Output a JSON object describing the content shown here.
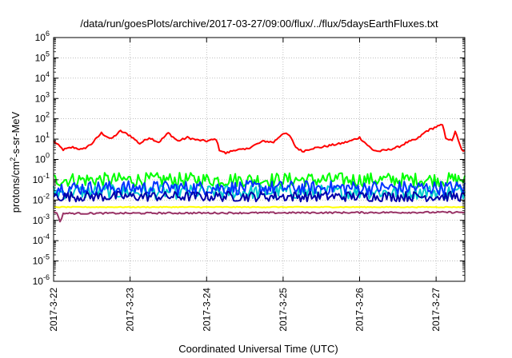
{
  "chart_data": {
    "type": "line",
    "title": "/data/run/goesPlots/archive/2017-03-27/09:00/flux/../flux/5daysEarthFluxes.txt",
    "xlabel": "Coordinated Universal Time (UTC)",
    "ylabel": "protons/cm2-s-sr-MeV",
    "ylabel_parts": {
      "pre": "protons/cm",
      "sup": "2",
      "post": "-s-sr-MeV"
    },
    "y_scale": "log",
    "ylim": [
      1e-06,
      1000000.0
    ],
    "xlim": [
      "2017-03-22 00:00",
      "2017-03-27 09:00"
    ],
    "grid": true,
    "x_tick_labels": [
      "2017-3-22",
      "2017-3-23",
      "2017-3-24",
      "2017-3-25",
      "2017-3-26",
      "2017-3-27"
    ],
    "y_tick_labels": [
      {
        "base": "10",
        "exp": "-6"
      },
      {
        "base": "10",
        "exp": "-5"
      },
      {
        "base": "10",
        "exp": "-4"
      },
      {
        "base": "10",
        "exp": "-3"
      },
      {
        "base": "10",
        "exp": "-2"
      },
      {
        "base": "10",
        "exp": "-1"
      },
      {
        "base": "10",
        "exp": "0"
      },
      {
        "base": "10",
        "exp": "1"
      },
      {
        "base": "10",
        "exp": "2"
      },
      {
        "base": "10",
        "exp": "3"
      },
      {
        "base": "10",
        "exp": "4"
      },
      {
        "base": "10",
        "exp": "5"
      },
      {
        "base": "10",
        "exp": "6"
      }
    ],
    "series": [
      {
        "color": "#ff0000",
        "jitter": 0.05,
        "points": [
          [
            "2017-03-22 00:00",
            8
          ],
          [
            "2017-03-22 03:00",
            3
          ],
          [
            "2017-03-22 06:00",
            4
          ],
          [
            "2017-03-22 09:00",
            3
          ],
          [
            "2017-03-22 12:00",
            6
          ],
          [
            "2017-03-22 15:00",
            20
          ],
          [
            "2017-03-22 18:00",
            10
          ],
          [
            "2017-03-22 21:00",
            25
          ],
          [
            "2017-03-23 00:00",
            15
          ],
          [
            "2017-03-23 03:00",
            6
          ],
          [
            "2017-03-23 06:00",
            12
          ],
          [
            "2017-03-23 09:00",
            7
          ],
          [
            "2017-03-23 12:00",
            20
          ],
          [
            "2017-03-23 15:00",
            8
          ],
          [
            "2017-03-23 18:00",
            12
          ],
          [
            "2017-03-23 21:00",
            9
          ],
          [
            "2017-03-24 00:00",
            8
          ],
          [
            "2017-03-24 03:00",
            10
          ],
          [
            "2017-03-24 04:00",
            3
          ],
          [
            "2017-03-24 06:00",
            2
          ],
          [
            "2017-03-24 09:00",
            3
          ],
          [
            "2017-03-24 12:00",
            3
          ],
          [
            "2017-03-24 15:00",
            5
          ],
          [
            "2017-03-24 18:00",
            8
          ],
          [
            "2017-03-24 21:00",
            7
          ],
          [
            "2017-03-25 00:00",
            20
          ],
          [
            "2017-03-25 02:00",
            15
          ],
          [
            "2017-03-25 04:00",
            4
          ],
          [
            "2017-03-25 06:00",
            2.5
          ],
          [
            "2017-03-25 09:00",
            3.5
          ],
          [
            "2017-03-25 12:00",
            4
          ],
          [
            "2017-03-25 15:00",
            5
          ],
          [
            "2017-03-25 18:00",
            6
          ],
          [
            "2017-03-25 21:00",
            8
          ],
          [
            "2017-03-26 00:00",
            12
          ],
          [
            "2017-03-26 02:00",
            6
          ],
          [
            "2017-03-26 04:00",
            3
          ],
          [
            "2017-03-26 06:00",
            2.5
          ],
          [
            "2017-03-26 09:00",
            3
          ],
          [
            "2017-03-26 12:00",
            4
          ],
          [
            "2017-03-26 15:00",
            7
          ],
          [
            "2017-03-26 18:00",
            10
          ],
          [
            "2017-03-26 21:00",
            25
          ],
          [
            "2017-03-27 00:00",
            40
          ],
          [
            "2017-03-27 02:00",
            50
          ],
          [
            "2017-03-27 03:00",
            12
          ],
          [
            "2017-03-27 05:00",
            8
          ],
          [
            "2017-03-27 06:00",
            25
          ],
          [
            "2017-03-27 07:00",
            8
          ],
          [
            "2017-03-27 08:00",
            3
          ],
          [
            "2017-03-27 09:00",
            2.5
          ]
        ]
      },
      {
        "color": "#00ff00",
        "jitter": 0.35,
        "points": [
          [
            "2017-03-22 00:00",
            0.1
          ],
          [
            "2017-03-27 09:00",
            0.1
          ]
        ]
      },
      {
        "color": "#00cccc",
        "jitter": 0.35,
        "points": [
          [
            "2017-03-22 00:00",
            0.025
          ],
          [
            "2017-03-27 09:00",
            0.025
          ]
        ]
      },
      {
        "color": "#0033ff",
        "jitter": 0.35,
        "points": [
          [
            "2017-03-22 00:00",
            0.04
          ],
          [
            "2017-03-27 09:00",
            0.04
          ]
        ]
      },
      {
        "color": "#0000aa",
        "jitter": 0.25,
        "points": [
          [
            "2017-03-22 00:00",
            0.015
          ],
          [
            "2017-03-27 09:00",
            0.015
          ]
        ]
      },
      {
        "color": "#ffff00",
        "jitter": 0.02,
        "points": [
          [
            "2017-03-22 00:00",
            0.0045
          ],
          [
            "2017-03-27 09:00",
            0.0045
          ]
        ]
      },
      {
        "color": "#993366",
        "jitter": 0.04,
        "points": [
          [
            "2017-03-22 00:00",
            0.0025
          ],
          [
            "2017-03-22 01:00",
            0.0025
          ],
          [
            "2017-03-22 02:00",
            0.0008
          ],
          [
            "2017-03-22 03:00",
            0.0022
          ],
          [
            "2017-03-27 09:00",
            0.0025
          ]
        ]
      }
    ]
  }
}
